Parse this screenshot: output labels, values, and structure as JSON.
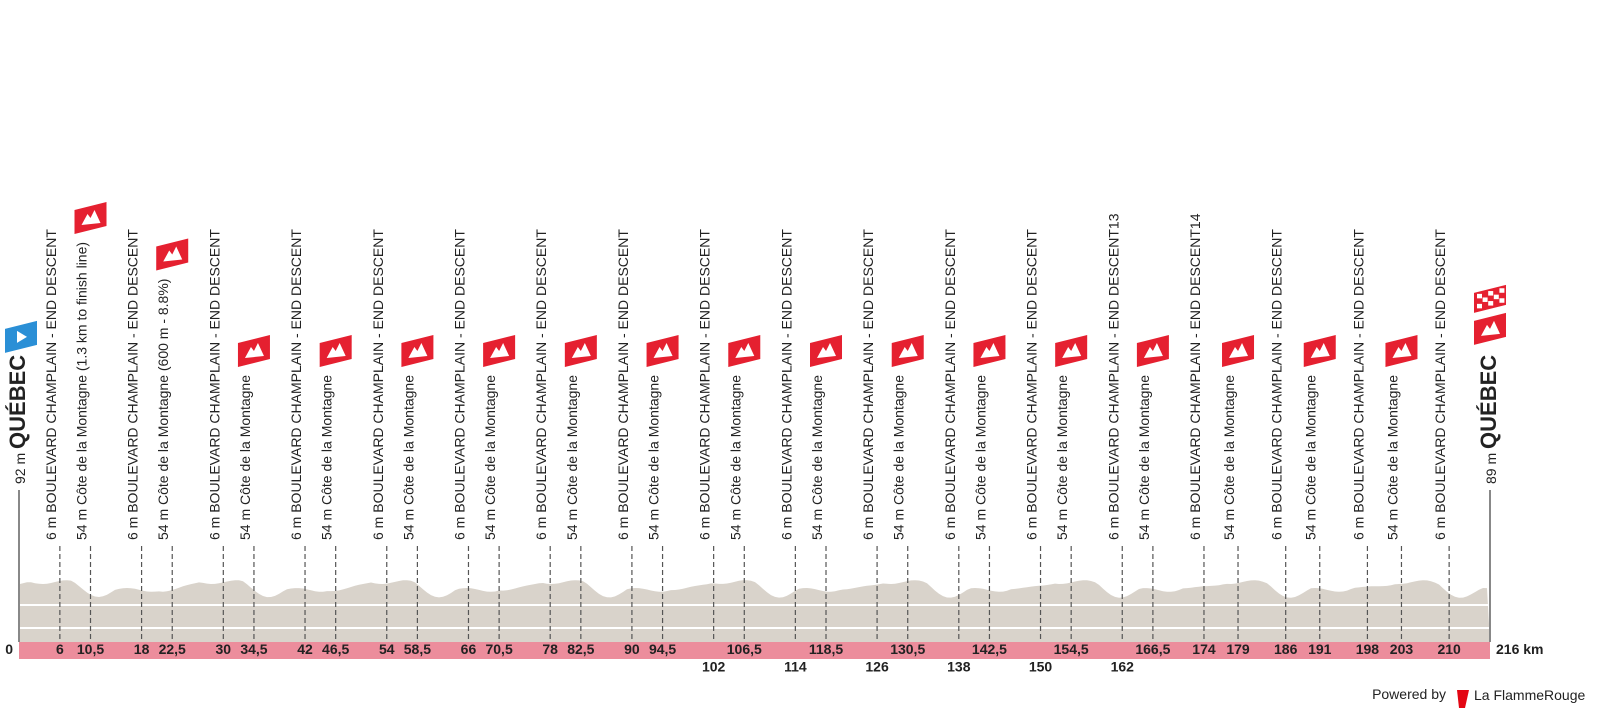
{
  "chart_data": {
    "type": "profile",
    "xlim": [
      0,
      216
    ],
    "xticks": [
      0,
      6,
      {
        "value": 10.5,
        "label": "10,5"
      },
      18,
      {
        "value": 22.5,
        "label": "22,5"
      },
      30,
      {
        "value": 34.5,
        "label": "34,5"
      },
      42,
      {
        "value": 46.5,
        "label": "46,5"
      },
      54,
      {
        "value": 58.5,
        "label": "58,5"
      },
      66,
      {
        "value": 70.5,
        "label": "70,5"
      },
      78,
      {
        "value": 82.5,
        "label": "82,5"
      },
      90,
      {
        "value": 94.5,
        "label": "94,5"
      },
      102,
      {
        "value": 106.5,
        "label": "106,5"
      },
      114,
      {
        "value": 118.5,
        "label": "118,5"
      },
      126,
      {
        "value": 130.5,
        "label": "130,5"
      },
      138,
      {
        "value": 142.5,
        "label": "142,5"
      },
      150,
      {
        "value": 154.5,
        "label": "154,5"
      },
      162,
      {
        "value": 166.5,
        "label": "166,5"
      },
      174,
      179,
      186,
      191,
      198,
      203,
      210,
      {
        "value": 216,
        "label": "216 km"
      }
    ],
    "start": {
      "altitude": "92 m",
      "name": "QUÉBEC"
    },
    "finish": {
      "altitude": "89 m",
      "name": "QUÉBEC"
    },
    "waypoints": [
      {
        "x": 6,
        "label": "6 m BOULEVARD CHAMPLAIN - END DESCENT"
      },
      {
        "x": 10.5,
        "label": "54 m Côte de la Montagne (1.3 km to finish line)",
        "icon": "climb"
      },
      {
        "x": 18,
        "label": "6 m BOULEVARD CHAMPLAIN - END DESCENT"
      },
      {
        "x": 22.5,
        "label": "54 m Côte de la Montagne (600 m - 8.8%)",
        "icon": "climb"
      },
      {
        "x": 30,
        "label": "6 m BOULEVARD CHAMPLAIN - END DESCENT"
      },
      {
        "x": 34.5,
        "label": "54 m Côte de la Montagne",
        "icon": "climb"
      },
      {
        "x": 42,
        "label": "6 m BOULEVARD CHAMPLAIN - END DESCENT"
      },
      {
        "x": 46.5,
        "label": "54 m Côte de la Montagne",
        "icon": "climb"
      },
      {
        "x": 54,
        "label": "6 m BOULEVARD CHAMPLAIN - END DESCENT"
      },
      {
        "x": 58.5,
        "label": "54 m Côte de la Montagne",
        "icon": "climb"
      },
      {
        "x": 66,
        "label": "6 m BOULEVARD CHAMPLAIN - END DESCENT"
      },
      {
        "x": 70.5,
        "label": "54 m Côte de la Montagne",
        "icon": "climb"
      },
      {
        "x": 78,
        "label": "6 m BOULEVARD CHAMPLAIN - END DESCENT"
      },
      {
        "x": 82.5,
        "label": "54 m Côte de la Montagne",
        "icon": "climb"
      },
      {
        "x": 90,
        "label": "6 m BOULEVARD CHAMPLAIN - END DESCENT"
      },
      {
        "x": 94.5,
        "label": "54 m Côte de la Montagne",
        "icon": "climb"
      },
      {
        "x": 102,
        "label": "6 m BOULEVARD CHAMPLAIN - END DESCENT"
      },
      {
        "x": 106.5,
        "label": "54 m Côte de la Montagne",
        "icon": "climb"
      },
      {
        "x": 114,
        "label": "6 m BOULEVARD CHAMPLAIN - END DESCENT"
      },
      {
        "x": 118.5,
        "label": "54 m Côte de la Montagne",
        "icon": "climb"
      },
      {
        "x": 126,
        "label": "6 m BOULEVARD CHAMPLAIN - END DESCENT"
      },
      {
        "x": 130.5,
        "label": "54 m Côte de la Montagne",
        "icon": "climb"
      },
      {
        "x": 138,
        "label": "6 m BOULEVARD CHAMPLAIN - END DESCENT"
      },
      {
        "x": 142.5,
        "label": "54 m Côte de la Montagne",
        "icon": "climb"
      },
      {
        "x": 150,
        "label": "6 m BOULEVARD CHAMPLAIN - END DESCENT"
      },
      {
        "x": 154.5,
        "label": "54 m Côte de la Montagne",
        "icon": "climb"
      },
      {
        "x": 162,
        "label": "6 m BOULEVARD CHAMPLAIN - END DESCENT13"
      },
      {
        "x": 166.5,
        "label": "54 m Côte de la Montagne",
        "icon": "climb"
      },
      {
        "x": 174,
        "label": "6 m BOULEVARD CHAMPLAIN - END DESCENT14"
      },
      {
        "x": 179,
        "label": "54 m Côte de la Montagne",
        "icon": "climb"
      },
      {
        "x": 186,
        "label": "6 m BOULEVARD CHAMPLAIN - END DESCENT"
      },
      {
        "x": 191,
        "label": "54 m Côte de la Montagne",
        "icon": "climb"
      },
      {
        "x": 198,
        "label": "6 m BOULEVARD CHAMPLAIN - END DESCENT"
      },
      {
        "x": 203,
        "label": "54 m Côte de la Montagne",
        "icon": "climb"
      },
      {
        "x": 210,
        "label": "6 m BOULEVARD CHAMPLAIN - END DESCENT"
      }
    ],
    "footer": {
      "powered": "Powered by",
      "brand": "La FlammeRouge"
    }
  }
}
